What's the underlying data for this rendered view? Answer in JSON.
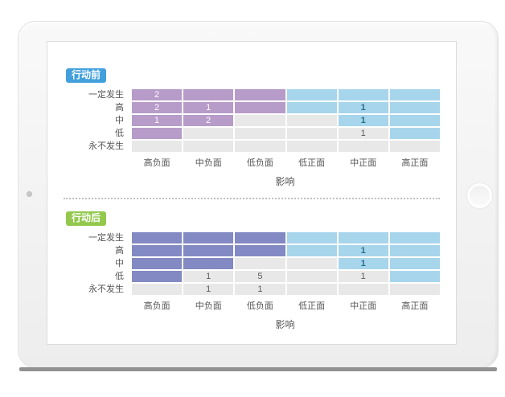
{
  "device": {
    "camera_icon": "camera-dot",
    "home_button_icon": "home-button-circle"
  },
  "palette": {
    "purple": "#b79bc9",
    "indigo": "#8289c3",
    "blue": "#a7d5ec",
    "gray": "#e8e8e8",
    "text_on_dark": "#ffffff",
    "text_on_blue": "#27708f",
    "text_on_gray": "#5a5a5a",
    "axis_text": "#555555",
    "divider": "#c0c0c0",
    "badge_before": "#42a0dc",
    "badge_after": "#93c84d"
  },
  "chart_data": [
    {
      "type": "heatmap",
      "title": "行动前",
      "badge_color": "#42a0dc",
      "rows": [
        "一定发生",
        "高",
        "中",
        "低",
        "永不发生"
      ],
      "columns": [
        "高负面",
        "中负面",
        "低负面",
        "低正面",
        "中正面",
        "高正面"
      ],
      "xlabel": "影响",
      "values": [
        [
          2,
          null,
          null,
          null,
          null,
          null
        ],
        [
          2,
          1,
          null,
          null,
          1,
          null
        ],
        [
          1,
          2,
          null,
          null,
          1,
          null
        ],
        [
          null,
          null,
          null,
          null,
          1,
          null
        ],
        [
          null,
          null,
          null,
          null,
          null,
          null
        ]
      ],
      "cell_colors": [
        [
          "purple",
          "purple",
          "purple",
          "blue",
          "blue",
          "blue"
        ],
        [
          "purple",
          "purple",
          "purple",
          "blue",
          "blue",
          "blue"
        ],
        [
          "purple",
          "purple",
          "gray",
          "gray",
          "blue",
          "blue"
        ],
        [
          "purple",
          "gray",
          "gray",
          "gray",
          "gray",
          "blue"
        ],
        [
          "gray",
          "gray",
          "gray",
          "gray",
          "gray",
          "gray"
        ]
      ]
    },
    {
      "type": "heatmap",
      "title": "行动后",
      "badge_color": "#93c84d",
      "rows": [
        "一定发生",
        "高",
        "中",
        "低",
        "永不发生"
      ],
      "columns": [
        "高负面",
        "中负面",
        "低负面",
        "低正面",
        "中正面",
        "高正面"
      ],
      "xlabel": "影响",
      "values": [
        [
          null,
          null,
          null,
          null,
          null,
          null
        ],
        [
          null,
          null,
          null,
          null,
          1,
          null
        ],
        [
          null,
          null,
          null,
          null,
          1,
          null
        ],
        [
          null,
          1,
          5,
          null,
          1,
          null
        ],
        [
          null,
          1,
          1,
          null,
          null,
          null
        ]
      ],
      "cell_colors": [
        [
          "indigo",
          "indigo",
          "indigo",
          "blue",
          "blue",
          "blue"
        ],
        [
          "indigo",
          "indigo",
          "indigo",
          "blue",
          "blue",
          "blue"
        ],
        [
          "indigo",
          "indigo",
          "gray",
          "gray",
          "blue",
          "blue"
        ],
        [
          "indigo",
          "gray",
          "gray",
          "gray",
          "gray",
          "blue"
        ],
        [
          "gray",
          "gray",
          "gray",
          "gray",
          "gray",
          "gray"
        ]
      ]
    }
  ]
}
